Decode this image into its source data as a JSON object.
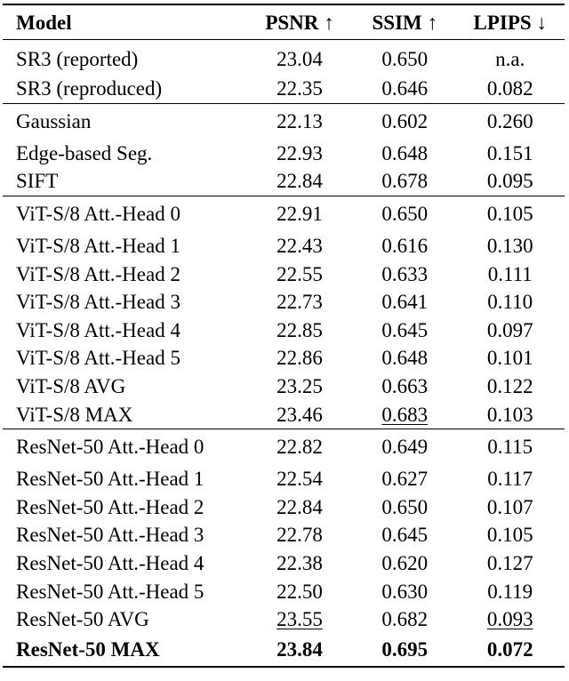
{
  "table": {
    "headers": {
      "model": "Model",
      "psnr": "PSNR ↑",
      "ssim": "SSIM ↑",
      "lpips": "LPIPS ↓"
    },
    "groups": [
      {
        "rows": [
          {
            "model": "SR3 (reported)",
            "psnr": "23.04",
            "ssim": "0.650",
            "lpips": "n.a."
          },
          {
            "model": "SR3 (reproduced)",
            "psnr": "22.35",
            "ssim": "0.646",
            "lpips": "0.082"
          }
        ]
      },
      {
        "rows": [
          {
            "model": "Gaussian",
            "psnr": "22.13",
            "ssim": "0.602",
            "lpips": "0.260"
          },
          {
            "model": "Edge-based Seg.",
            "psnr": "22.93",
            "ssim": "0.648",
            "lpips": "0.151"
          },
          {
            "model": "SIFT",
            "psnr": "22.84",
            "ssim": "0.678",
            "lpips": "0.095"
          }
        ]
      },
      {
        "rows": [
          {
            "model": "ViT-S/8 Att.-Head 0",
            "psnr": "22.91",
            "ssim": "0.650",
            "lpips": "0.105"
          },
          {
            "model": "ViT-S/8 Att.-Head 1",
            "psnr": "22.43",
            "ssim": "0.616",
            "lpips": "0.130"
          },
          {
            "model": "ViT-S/8 Att.-Head 2",
            "psnr": "22.55",
            "ssim": "0.633",
            "lpips": "0.111"
          },
          {
            "model": "ViT-S/8 Att.-Head 3",
            "psnr": "22.73",
            "ssim": "0.641",
            "lpips": "0.110"
          },
          {
            "model": "ViT-S/8 Att.-Head 4",
            "psnr": "22.85",
            "ssim": "0.645",
            "lpips": "0.097"
          },
          {
            "model": "ViT-S/8 Att.-Head 5",
            "psnr": "22.86",
            "ssim": "0.648",
            "lpips": "0.101"
          },
          {
            "model": "ViT-S/8 AVG",
            "psnr": "23.25",
            "ssim": "0.663",
            "lpips": "0.122"
          },
          {
            "model": "ViT-S/8 MAX",
            "psnr": "23.46",
            "ssim": "0.683",
            "lpips": "0.103",
            "underline": [
              "ssim"
            ]
          }
        ]
      },
      {
        "rows": [
          {
            "model": "ResNet-50 Att.-Head 0",
            "psnr": "22.82",
            "ssim": "0.649",
            "lpips": "0.115"
          },
          {
            "model": "ResNet-50 Att.-Head 1",
            "psnr": "22.54",
            "ssim": "0.627",
            "lpips": "0.117"
          },
          {
            "model": "ResNet-50 Att.-Head 2",
            "psnr": "22.84",
            "ssim": "0.650",
            "lpips": "0.107"
          },
          {
            "model": "ResNet-50 Att.-Head 3",
            "psnr": "22.78",
            "ssim": "0.645",
            "lpips": "0.105"
          },
          {
            "model": "ResNet-50 Att.-Head 4",
            "psnr": "22.38",
            "ssim": "0.620",
            "lpips": "0.127"
          },
          {
            "model": "ResNet-50 Att.-Head 5",
            "psnr": "22.50",
            "ssim": "0.630",
            "lpips": "0.119"
          },
          {
            "model": "ResNet-50 AVG",
            "psnr": "23.55",
            "ssim": "0.682",
            "lpips": "0.093",
            "underline": [
              "psnr",
              "lpips"
            ]
          },
          {
            "model": "ResNet-50 MAX",
            "psnr": "23.84",
            "ssim": "0.695",
            "lpips": "0.072",
            "bold": true
          }
        ]
      }
    ]
  }
}
